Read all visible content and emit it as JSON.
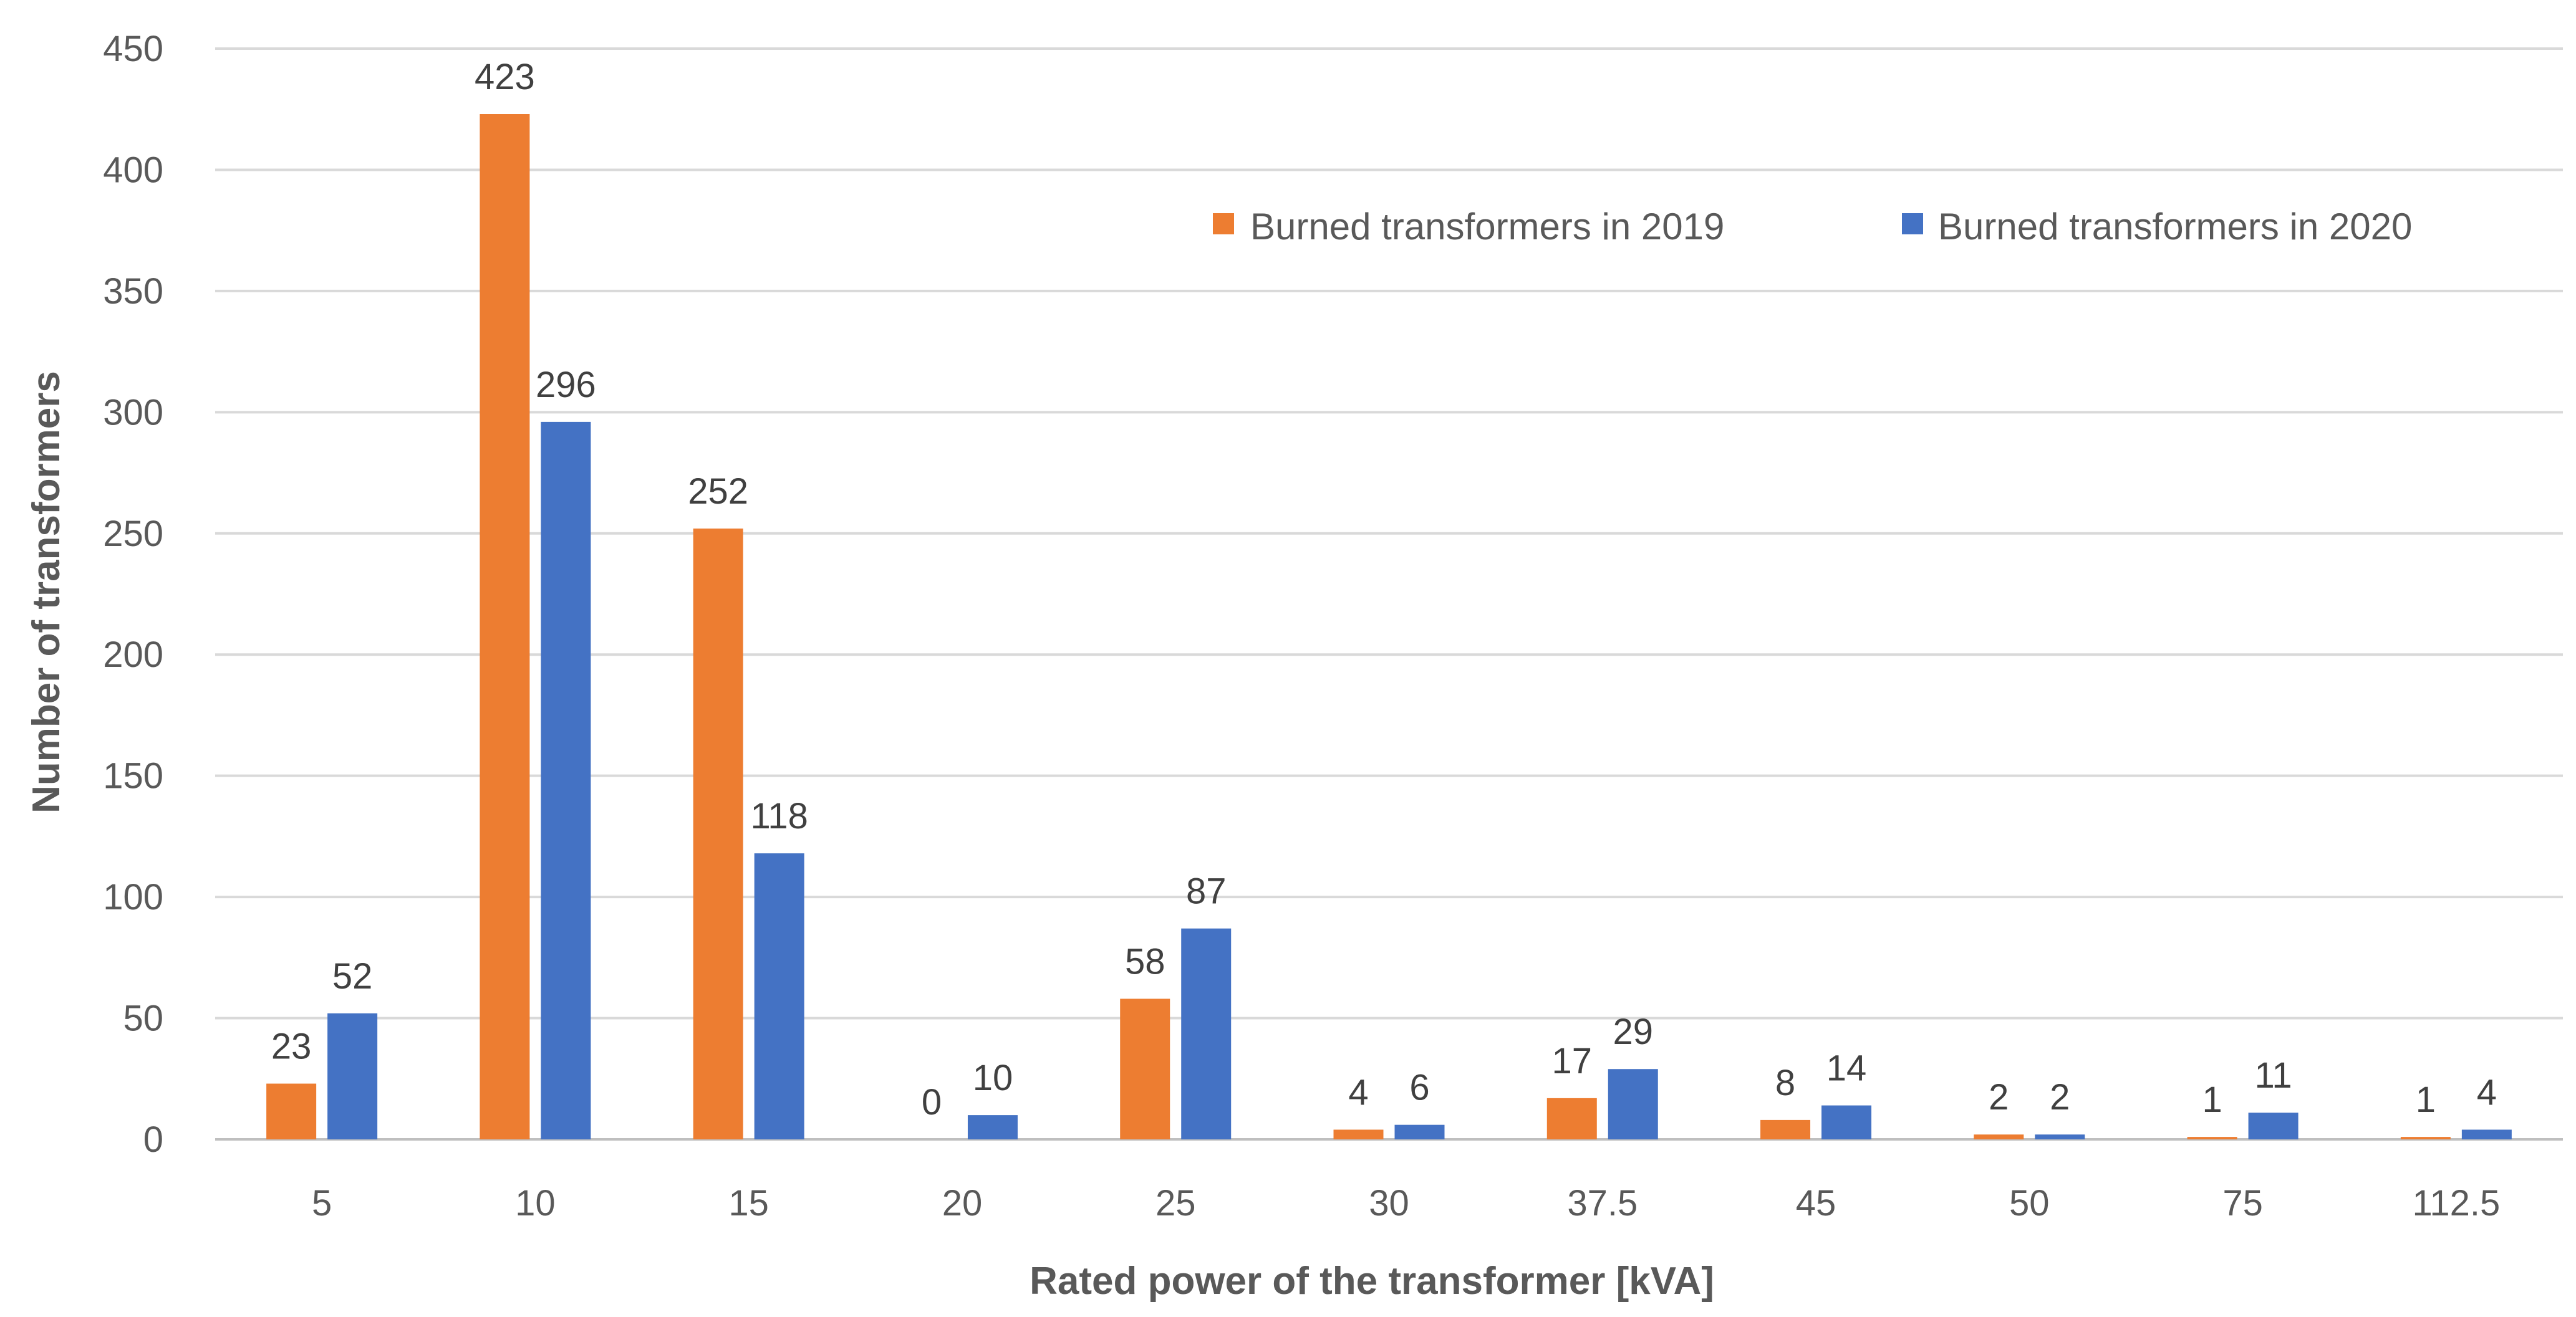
{
  "chart_data": {
    "type": "bar",
    "title": "",
    "xlabel": "Rated power of the transformer [kVA]",
    "ylabel": "Number of transformers",
    "ylim": [
      0,
      450
    ],
    "yticks": [
      0,
      50,
      100,
      150,
      200,
      250,
      300,
      350,
      400,
      450
    ],
    "grid": true,
    "legend_position": "top-right",
    "categories": [
      "5",
      "10",
      "15",
      "20",
      "25",
      "30",
      "37.5",
      "45",
      "50",
      "75",
      "112.5"
    ],
    "series": [
      {
        "name": "Burned transformers in 2019",
        "color": "#ED7D31",
        "values": [
          23,
          423,
          252,
          0,
          58,
          4,
          17,
          8,
          2,
          1,
          1
        ]
      },
      {
        "name": "Burned transformers in 2020",
        "color": "#4472C4",
        "values": [
          52,
          296,
          118,
          10,
          87,
          6,
          29,
          14,
          2,
          11,
          4
        ]
      }
    ]
  }
}
